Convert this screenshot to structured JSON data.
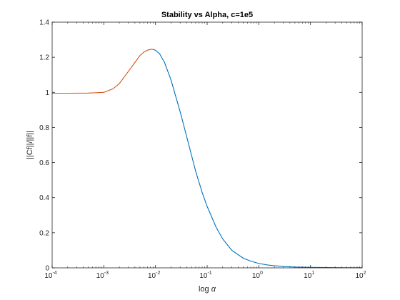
{
  "chart_data": {
    "type": "line",
    "title": "Stability vs Alpha, c=1e5",
    "xlabel_text": "log ",
    "xlabel_symbol": "α",
    "ylabel": "||Cf||/||f||",
    "xscale": "log",
    "xlim": [
      0.0001,
      100
    ],
    "ylim": [
      0,
      1.4
    ],
    "grid": false,
    "xticks": [
      {
        "value": 0.0001,
        "base": "10",
        "exp": "-4"
      },
      {
        "value": 0.001,
        "base": "10",
        "exp": "-3"
      },
      {
        "value": 0.01,
        "base": "10",
        "exp": "-2"
      },
      {
        "value": 0.1,
        "base": "10",
        "exp": "-1"
      },
      {
        "value": 1,
        "base": "10",
        "exp": "0"
      },
      {
        "value": 10,
        "base": "10",
        "exp": "1"
      },
      {
        "value": 100,
        "base": "10",
        "exp": "2"
      }
    ],
    "yticks": [
      {
        "value": 0,
        "label": "0"
      },
      {
        "value": 0.2,
        "label": "0.2"
      },
      {
        "value": 0.4,
        "label": "0.4"
      },
      {
        "value": 0.6,
        "label": "0.6"
      },
      {
        "value": 0.8,
        "label": "0.8"
      },
      {
        "value": 1,
        "label": "1"
      },
      {
        "value": 1.2,
        "label": "1.2"
      },
      {
        "value": 1.4,
        "label": "1.4"
      }
    ],
    "series": [
      {
        "color": "#D95319",
        "x": [
          0.0001,
          0.0002,
          0.0005,
          0.001,
          0.0015,
          0.002,
          0.003,
          0.004,
          0.005,
          0.006,
          0.007,
          0.008,
          0.009
        ],
        "y": [
          0.995,
          0.995,
          0.996,
          1.0,
          1.02,
          1.05,
          1.12,
          1.17,
          1.21,
          1.23,
          1.24,
          1.245,
          1.245
        ]
      },
      {
        "color": "#0072BD",
        "x": [
          0.009,
          0.01,
          0.012,
          0.015,
          0.02,
          0.03,
          0.04,
          0.05,
          0.06,
          0.08,
          0.1,
          0.15,
          0.2,
          0.3,
          0.5,
          0.7,
          1,
          1.5,
          2,
          3,
          5,
          10,
          20,
          50,
          100
        ],
        "y": [
          1.245,
          1.24,
          1.22,
          1.17,
          1.07,
          0.89,
          0.75,
          0.64,
          0.55,
          0.43,
          0.35,
          0.23,
          0.165,
          0.1,
          0.055,
          0.038,
          0.025,
          0.016,
          0.012,
          0.008,
          0.005,
          0.003,
          0.002,
          0.001,
          0.001
        ]
      }
    ]
  }
}
